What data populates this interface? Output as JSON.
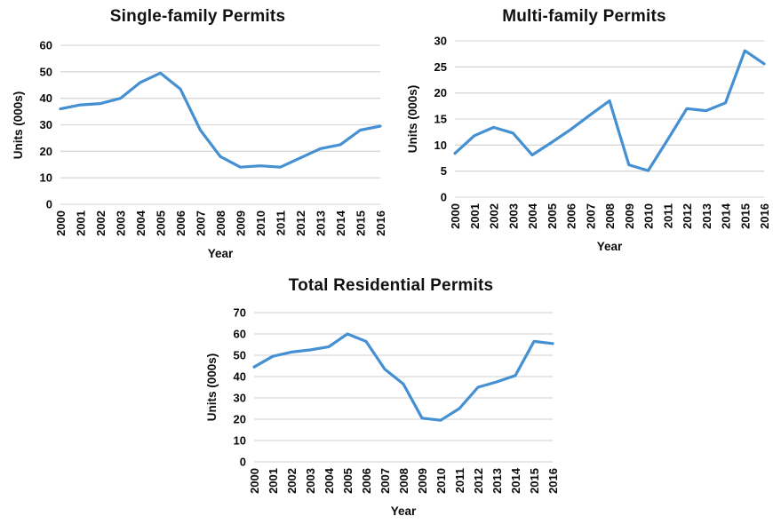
{
  "page": {
    "background": "#ffffff",
    "text_color": "#0a0a0a"
  },
  "chart_data": [
    {
      "type": "line",
      "title": "Single-family Permits",
      "xlabel": "Year",
      "ylabel": "Units (000s)",
      "categories": [
        "2000",
        "2001",
        "2002",
        "2003",
        "2004",
        "2005",
        "2006",
        "2007",
        "2008",
        "2009",
        "2010",
        "2011",
        "2012",
        "2013",
        "2014",
        "2015",
        "2016"
      ],
      "values": [
        36,
        37.5,
        38,
        40,
        46,
        49.5,
        43.5,
        28,
        18,
        14,
        14.5,
        14,
        17.5,
        21,
        22.5,
        28,
        29.5
      ],
      "ylim": [
        0,
        60
      ],
      "yticks": [
        0,
        10,
        20,
        30,
        40,
        50,
        60
      ],
      "grid": true,
      "legend": false,
      "line_color": "#4490d2",
      "grid_color": "#d9d9d9"
    },
    {
      "type": "line",
      "title": "Multi-family Permits",
      "xlabel": "Year",
      "ylabel": "Units (000s)",
      "categories": [
        "2000",
        "2001",
        "2002",
        "2003",
        "2004",
        "2005",
        "2006",
        "2007",
        "2008",
        "2009",
        "2010",
        "2011",
        "2012",
        "2013",
        "2014",
        "2015",
        "2016"
      ],
      "values": [
        8.4,
        11.8,
        13.4,
        12.3,
        8.1,
        10.5,
        13,
        15.8,
        18.5,
        6.2,
        5.1,
        11,
        17,
        16.6,
        18.1,
        28.1,
        25.6
      ],
      "ylim": [
        0,
        30
      ],
      "yticks": [
        0,
        5,
        10,
        15,
        20,
        25,
        30
      ],
      "grid": true,
      "legend": false,
      "line_color": "#4490d2",
      "grid_color": "#d9d9d9"
    },
    {
      "type": "line",
      "title": "Total Residential Permits",
      "xlabel": "Year",
      "ylabel": "Units (000s)",
      "categories": [
        "2000",
        "2001",
        "2002",
        "2003",
        "2004",
        "2005",
        "2006",
        "2007",
        "2008",
        "2009",
        "2010",
        "2011",
        "2012",
        "2013",
        "2014",
        "2015",
        "2016"
      ],
      "values": [
        44.5,
        49.5,
        51.5,
        52.5,
        54,
        60,
        56.5,
        43.5,
        36.5,
        20.5,
        19.5,
        25,
        35,
        37.5,
        40.5,
        56.5,
        55.5
      ],
      "ylim": [
        0,
        70
      ],
      "yticks": [
        0,
        10,
        20,
        30,
        40,
        50,
        60,
        70
      ],
      "grid": true,
      "legend": false,
      "line_color": "#4490d2",
      "grid_color": "#d9d9d9"
    }
  ]
}
